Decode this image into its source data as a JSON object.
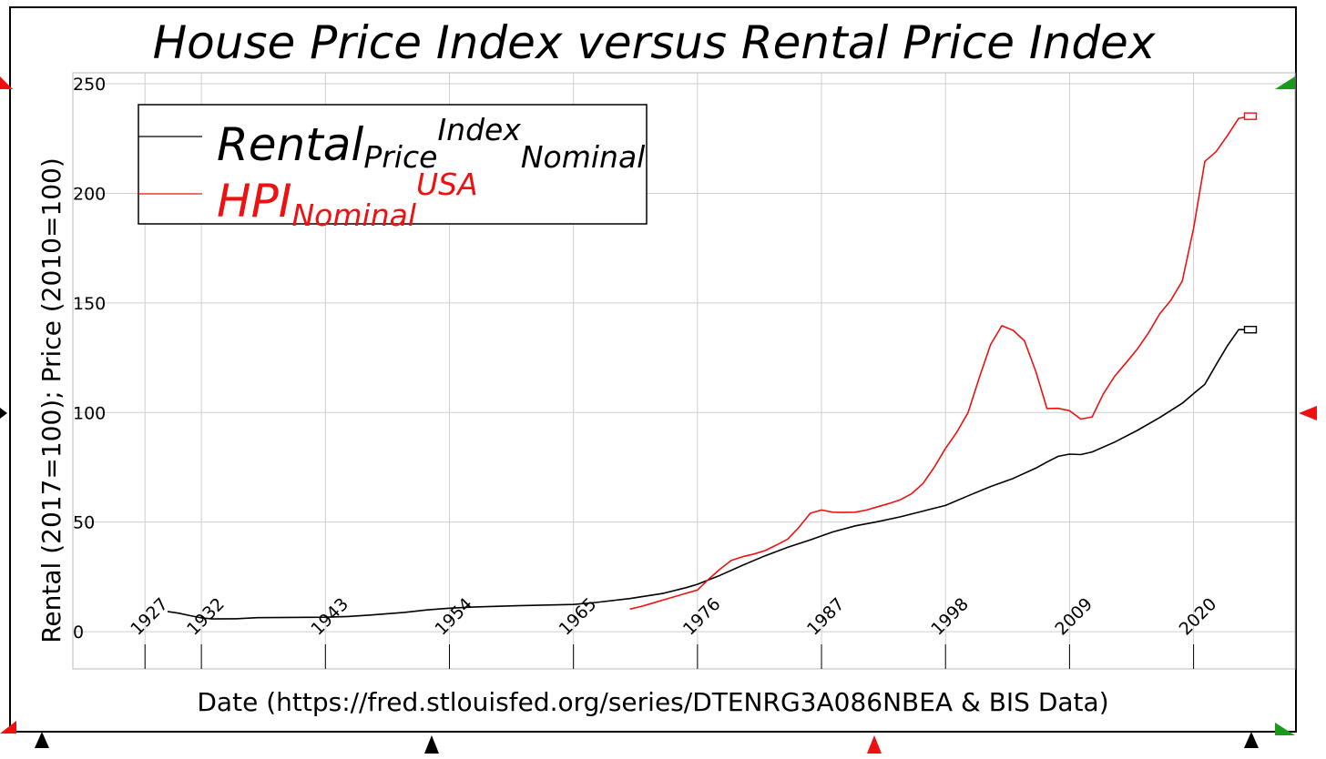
{
  "chart_data": {
    "type": "line",
    "title": "House Price Index versus Rental Price Index",
    "xlabel": "Date (https://fred.stlouisfed.org/series/DTENRG3A086NBEA & BIS Data)",
    "ylabel": "Rental (2017=100); Price (2010=100)",
    "xlim": [
      1920.6,
      2029.0
    ],
    "ylim": [
      -17,
      255
    ],
    "x_ticks": [
      1927,
      1932,
      1943,
      1954,
      1965,
      1976,
      1987,
      1998,
      2009,
      2020
    ],
    "y_ticks": [
      0,
      50,
      100,
      150,
      200,
      250
    ],
    "grid": true,
    "legend": {
      "placement": "top-left",
      "entries": [
        {
          "base": "Rental",
          "sub": "Price",
          "sup": "Index",
          "sub2": "Nominal"
        },
        {
          "base": "HPI",
          "sub": "Nominal",
          "sup": "USA"
        }
      ]
    },
    "series": [
      {
        "name": "Rental Price Index Nominal",
        "color": "#000000",
        "points": [
          [
            1929,
            9.2
          ],
          [
            1930,
            8.4
          ],
          [
            1931,
            7.3
          ],
          [
            1932,
            6.3
          ],
          [
            1933,
            5.8
          ],
          [
            1935,
            5.9
          ],
          [
            1937,
            6.4
          ],
          [
            1940,
            6.5
          ],
          [
            1943,
            6.6
          ],
          [
            1945,
            6.9
          ],
          [
            1947,
            7.6
          ],
          [
            1950,
            8.8
          ],
          [
            1952,
            9.9
          ],
          [
            1954,
            10.7
          ],
          [
            1956,
            11.2
          ],
          [
            1960,
            11.8
          ],
          [
            1965,
            12.4
          ],
          [
            1967,
            13.3
          ],
          [
            1970,
            15.1
          ],
          [
            1973,
            17.5
          ],
          [
            1975,
            20.1
          ],
          [
            1976,
            21.6
          ],
          [
            1978,
            25.7
          ],
          [
            1980,
            30.3
          ],
          [
            1982,
            34.6
          ],
          [
            1984,
            38.5
          ],
          [
            1986,
            41.9
          ],
          [
            1988,
            45.5
          ],
          [
            1990,
            48.3
          ],
          [
            1992,
            50.2
          ],
          [
            1994,
            52.4
          ],
          [
            1996,
            55.0
          ],
          [
            1998,
            57.6
          ],
          [
            2000,
            62.0
          ],
          [
            2002,
            66.2
          ],
          [
            2004,
            69.9
          ],
          [
            2006,
            74.6
          ],
          [
            2007,
            77.4
          ],
          [
            2008,
            80.0
          ],
          [
            2009,
            81.0
          ],
          [
            2010,
            80.8
          ],
          [
            2011,
            82.0
          ],
          [
            2013,
            86.5
          ],
          [
            2015,
            91.8
          ],
          [
            2017,
            97.7
          ],
          [
            2019,
            104.2
          ],
          [
            2020,
            108.6
          ],
          [
            2021,
            112.9
          ],
          [
            2022,
            121.8
          ],
          [
            2023,
            130.4
          ],
          [
            2024,
            137.8
          ],
          [
            2025,
            137.8
          ]
        ]
      },
      {
        "name": "HPI Nominal USA",
        "color": "#ee1111",
        "points": [
          [
            1970,
            10.3
          ],
          [
            1971,
            11.5
          ],
          [
            1972,
            13.0
          ],
          [
            1973,
            14.5
          ],
          [
            1974,
            16.0
          ],
          [
            1975,
            17.5
          ],
          [
            1976,
            19.0
          ],
          [
            1977,
            24.0
          ],
          [
            1978,
            28.5
          ],
          [
            1979,
            32.5
          ],
          [
            1980,
            34.2
          ],
          [
            1981,
            35.4
          ],
          [
            1982,
            37.0
          ],
          [
            1983,
            39.5
          ],
          [
            1984,
            42.2
          ],
          [
            1985,
            47.6
          ],
          [
            1986,
            54.0
          ],
          [
            1987,
            55.5
          ],
          [
            1988,
            54.5
          ],
          [
            1989,
            54.4
          ],
          [
            1990,
            54.5
          ],
          [
            1991,
            55.5
          ],
          [
            1992,
            57.0
          ],
          [
            1993,
            58.5
          ],
          [
            1994,
            60.2
          ],
          [
            1995,
            63.0
          ],
          [
            1996,
            67.6
          ],
          [
            1997,
            75.0
          ],
          [
            1998,
            83.6
          ],
          [
            1999,
            91.0
          ],
          [
            2000,
            100.0
          ],
          [
            2001,
            116.0
          ],
          [
            2002,
            131.0
          ],
          [
            2003,
            139.6
          ],
          [
            2004,
            137.5
          ],
          [
            2005,
            132.7
          ],
          [
            2006,
            118.8
          ],
          [
            2007,
            101.8
          ],
          [
            2008,
            101.9
          ],
          [
            2009,
            100.8
          ],
          [
            2010,
            97.0
          ],
          [
            2011,
            98.0
          ],
          [
            2012,
            108.5
          ],
          [
            2013,
            116.5
          ],
          [
            2014,
            122.6
          ],
          [
            2015,
            128.9
          ],
          [
            2016,
            136.3
          ],
          [
            2017,
            145.0
          ],
          [
            2018,
            151.3
          ],
          [
            2019,
            160.0
          ],
          [
            2020,
            184.0
          ],
          [
            2021,
            214.6
          ],
          [
            2022,
            219.0
          ],
          [
            2023,
            226.3
          ],
          [
            2024,
            234.2
          ],
          [
            2025,
            235.2
          ]
        ]
      }
    ]
  }
}
